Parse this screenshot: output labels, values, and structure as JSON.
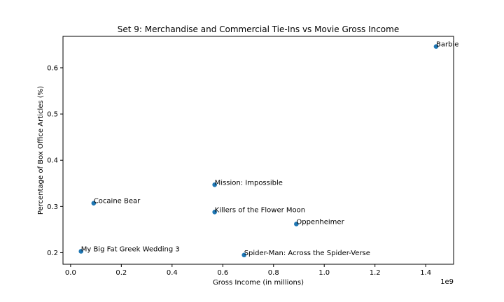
{
  "chart_data": {
    "type": "scatter",
    "title": "Set 9: Merchandise and Commercial Tie-Ins vs Movie Gross Income",
    "xlabel": "Gross Income (in millions)",
    "ylabel": "Percentage of Box Office Articles (%)",
    "x_offset_label": "1e9",
    "xlim": [
      -0.03,
      1.51
    ],
    "ylim": [
      0.175,
      0.668
    ],
    "xticks": [
      0.0,
      0.2,
      0.4,
      0.6,
      0.8,
      1.0,
      1.2,
      1.4
    ],
    "xtick_labels": [
      "0.0",
      "0.2",
      "0.4",
      "0.6",
      "0.8",
      "1.0",
      "1.2",
      "1.4"
    ],
    "yticks": [
      0.2,
      0.3,
      0.4,
      0.5,
      0.6
    ],
    "ytick_labels": [
      "0.2",
      "0.3",
      "0.4",
      "0.5",
      "0.6"
    ],
    "grid": false,
    "marker_color": "#1f77b4",
    "points": [
      {
        "label": "Barbie",
        "x": 1.441,
        "y": 0.646
      },
      {
        "label": "Mission: Impossible",
        "x": 0.568,
        "y": 0.347
      },
      {
        "label": "Cocaine Bear",
        "x": 0.091,
        "y": 0.307
      },
      {
        "label": "Killers of the Flower Moon",
        "x": 0.568,
        "y": 0.288
      },
      {
        "label": "Oppenheimer",
        "x": 0.89,
        "y": 0.262
      },
      {
        "label": "My Big Fat Greek Wedding 3",
        "x": 0.041,
        "y": 0.203
      },
      {
        "label": "Spider-Man: Across the Spider-Verse",
        "x": 0.684,
        "y": 0.195
      }
    ]
  }
}
